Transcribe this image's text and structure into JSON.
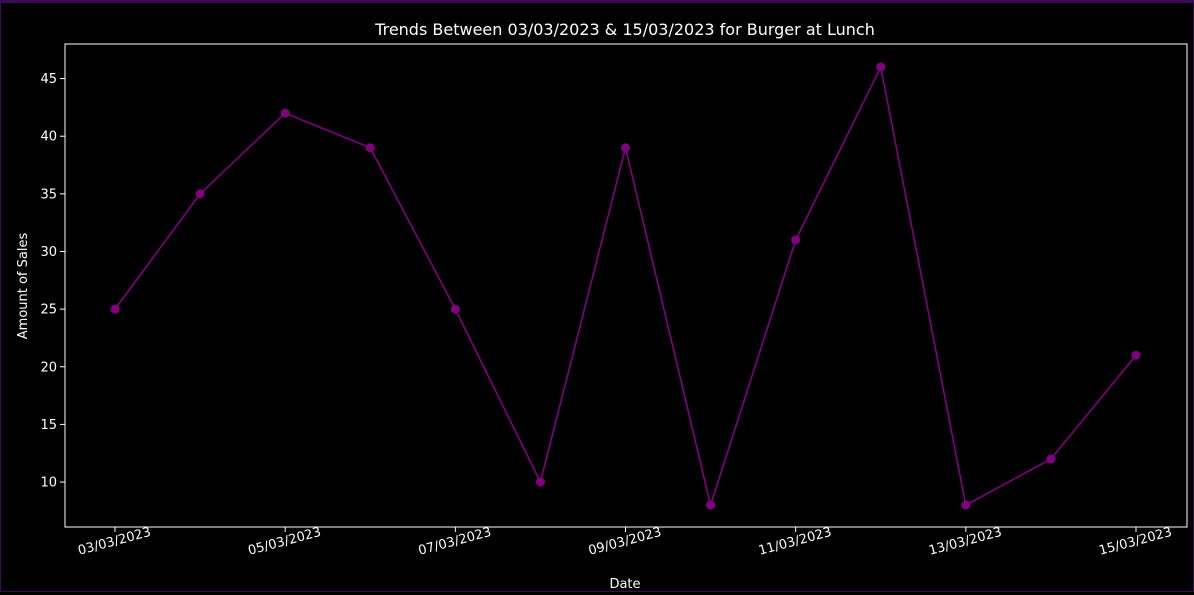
{
  "chart_data": {
    "type": "line",
    "title": "Trends Between 03/03/2023 & 15/03/2023 for Burger at Lunch",
    "xlabel": "Date",
    "ylabel": "Amount of Sales",
    "x": [
      "03/03/2023",
      "04/03/2023",
      "05/03/2023",
      "06/03/2023",
      "07/03/2023",
      "08/03/2023",
      "09/03/2023",
      "10/03/2023",
      "11/03/2023",
      "12/03/2023",
      "13/03/2023",
      "14/03/2023",
      "15/03/2023"
    ],
    "values": [
      25,
      35,
      42,
      39,
      25,
      10,
      39,
      8,
      31,
      46,
      8,
      12,
      21
    ],
    "x_tick_labels": [
      "03/03/2023",
      "05/03/2023",
      "07/03/2023",
      "09/03/2023",
      "11/03/2023",
      "13/03/2023",
      "15/03/2023"
    ],
    "y_ticks": [
      10,
      15,
      20,
      25,
      30,
      35,
      40,
      45
    ],
    "ylim": [
      6.1,
      48.0
    ],
    "grid": false,
    "line_color": "#800080",
    "background": "#000000",
    "text_color": "#ffffff"
  }
}
